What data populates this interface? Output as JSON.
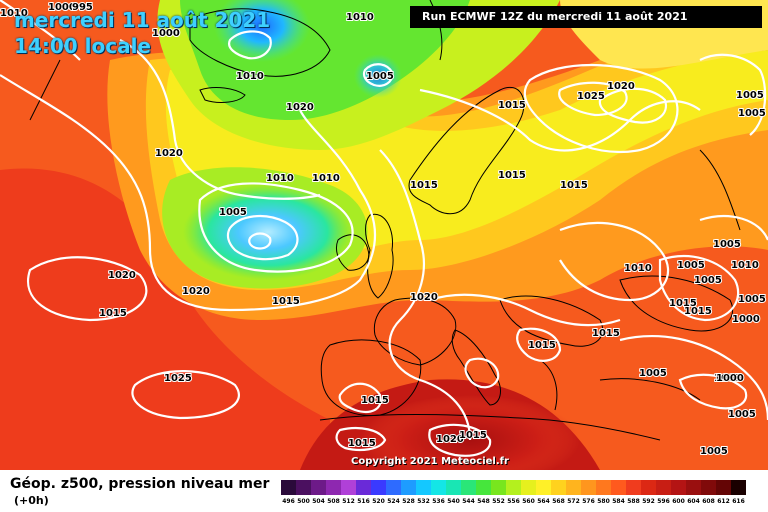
{
  "header": {
    "date_line": "mercredi 11 août 2021",
    "time_line": "14:00 locale",
    "run_label": "Run ECMWF 12Z du mercredi 11 août 2021"
  },
  "map": {
    "copyright": "Copyright 2021 Meteociel.fr",
    "isobar_labels": [
      "1010",
      "1000",
      "995",
      "1000",
      "1010",
      "1010",
      "1005",
      "1020",
      "1020",
      "1010",
      "1010",
      "1005",
      "1015",
      "1015",
      "1015",
      "1025",
      "1020",
      "1005",
      "1005",
      "1020",
      "1015",
      "1020",
      "1015",
      "1020",
      "1015",
      "1015",
      "1025",
      "1015",
      "1015",
      "1020",
      "1015",
      "1015",
      "1005",
      "1010",
      "1005",
      "1010",
      "1005",
      "1015",
      "1005",
      "1005",
      "1015",
      "1000",
      "1005",
      "1005",
      "1000",
      "1005"
    ]
  },
  "legend": {
    "title": "Géop. z500, pression niveau mer",
    "subtitle": "(+0h)",
    "ticks": [
      "496",
      "500",
      "504",
      "508",
      "512",
      "516",
      "520",
      "524",
      "528",
      "532",
      "536",
      "540",
      "544",
      "548",
      "552",
      "556",
      "560",
      "564",
      "568",
      "572",
      "576",
      "580",
      "584",
      "588",
      "592",
      "596",
      "600",
      "604",
      "608",
      "612",
      "616"
    ],
    "colors": [
      "#2a0a3a",
      "#4b1060",
      "#6d1a88",
      "#8e28b0",
      "#b040d8",
      "#6a2ad8",
      "#3a3aff",
      "#2e6bff",
      "#1e9cff",
      "#14c8ff",
      "#14e6e6",
      "#19e6b4",
      "#2ae678",
      "#46e63c",
      "#78e61e",
      "#b4f01e",
      "#e6f01e",
      "#fff028",
      "#ffd21e",
      "#ffb41e",
      "#ff961e",
      "#ff781e",
      "#ff5a1e",
      "#f03c1e",
      "#dc2814",
      "#c81e14",
      "#b41414",
      "#9a0f0f",
      "#800a0a",
      "#640505",
      "#1a0000"
    ]
  }
}
